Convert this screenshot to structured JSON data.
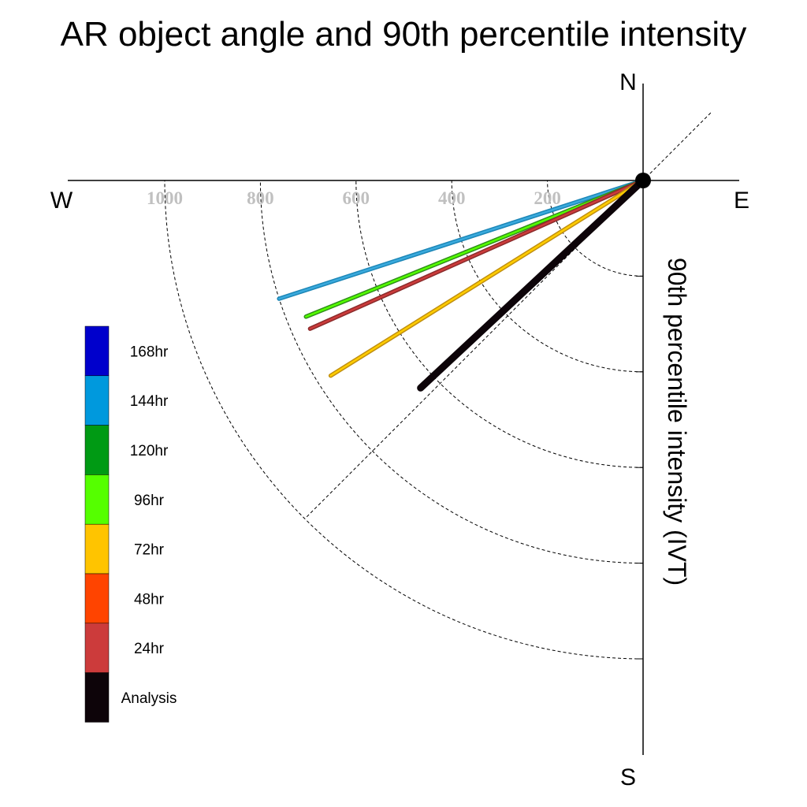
{
  "chart_data": {
    "type": "polar-line",
    "title": "AR object angle and 90th percentile intensity",
    "ylabel": "90th percentile intensity (IVT)",
    "compass": {
      "north": "N",
      "south": "S",
      "east": "E",
      "west": "W"
    },
    "radial_ticks": [
      "200",
      "400",
      "600",
      "800",
      "1000"
    ],
    "radial_tick_values": [
      200,
      400,
      600,
      800,
      1000
    ],
    "rmax": 1000,
    "angle_unit": "degrees clockwise from north",
    "series": [
      {
        "name": "144hr",
        "angle": 252,
        "intensity": 800,
        "color": "#3aaadd",
        "edge": "#1c86b6"
      },
      {
        "name": "96hr",
        "angle": 248,
        "intensity": 760,
        "color": "#55ff00",
        "edge": "#2f8f1a"
      },
      {
        "name": "24hr",
        "angle": 246,
        "intensity": 762,
        "color": "#cc3b3b",
        "edge": "#8b2b2b"
      },
      {
        "name": "72hr",
        "angle": 238,
        "intensity": 770,
        "color": "#ffcc00",
        "edge": "#c08f10"
      },
      {
        "name": "Analysis",
        "angle": 227,
        "intensity": 636,
        "color": "#0d0409",
        "edge": "#0d0409"
      }
    ],
    "legend": [
      {
        "label": "168hr",
        "color": "#0000cc"
      },
      {
        "label": "144hr",
        "color": "#0099dd"
      },
      {
        "label": "120hr",
        "color": "#009a14"
      },
      {
        "label": "96hr",
        "color": "#55ff00"
      },
      {
        "label": "72hr",
        "color": "#ffc400"
      },
      {
        "label": "48hr",
        "color": "#ff4400"
      },
      {
        "label": "24hr",
        "color": "#cc3b3b"
      },
      {
        "label": "Analysis",
        "color": "#0d0409"
      }
    ],
    "legend_placement": "left"
  }
}
